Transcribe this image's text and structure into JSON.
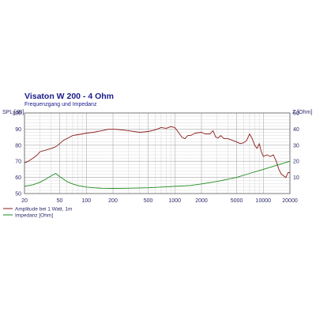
{
  "chart_data": {
    "type": "line",
    "title": "Visaton W 200 - 4 Ohm",
    "subtitle": "Frequenzgang und Impedanz",
    "xscale": "log",
    "xlim": [
      20,
      20000
    ],
    "x_ticks": [
      20,
      50,
      100,
      200,
      500,
      1000,
      2000,
      5000,
      10000,
      20000
    ],
    "x_tick_labels": [
      "20",
      "50",
      "100",
      "200",
      "500",
      "1000",
      "2000",
      "5000",
      "10000",
      "20000"
    ],
    "y_left": {
      "label": "SPL [dB]",
      "lim": [
        50,
        100
      ],
      "ticks": [
        50,
        60,
        70,
        80,
        90,
        100
      ],
      "tick_labels": [
        "50",
        "60",
        "70",
        "80",
        "90",
        "100"
      ]
    },
    "y_right": {
      "label": "Z [Ohm]",
      "lim": [
        0,
        50
      ],
      "ticks": [
        10,
        20,
        30,
        40,
        50
      ],
      "tick_labels": [
        "10",
        "20",
        "30",
        "40",
        "50"
      ]
    },
    "grid": true,
    "legend_position": "bottom-left",
    "series": [
      {
        "name": "Amplitude bei 1 Watt, 1m",
        "axis": "left",
        "color": "#8b1a1a",
        "x": [
          20,
          22,
          25,
          28,
          30,
          35,
          40,
          45,
          50,
          55,
          60,
          70,
          80,
          90,
          100,
          120,
          150,
          180,
          200,
          250,
          300,
          400,
          500,
          600,
          700,
          800,
          900,
          1000,
          1100,
          1200,
          1300,
          1400,
          1500,
          1700,
          2000,
          2200,
          2500,
          2700,
          2900,
          3100,
          3300,
          3600,
          4000,
          4500,
          5000,
          5500,
          6000,
          6500,
          7000,
          7500,
          8000,
          8500,
          9000,
          9500,
          10000,
          11000,
          12000,
          13000,
          14000,
          15000,
          16000,
          17000,
          18000,
          19000,
          20000
        ],
        "y": [
          69,
          70,
          72,
          74,
          76,
          77,
          78,
          79,
          81,
          83,
          84,
          86,
          86.5,
          87,
          87.5,
          88,
          89,
          90,
          90,
          89.5,
          89,
          88,
          88.5,
          89.5,
          91,
          90.5,
          91.5,
          91,
          88,
          85,
          84,
          86,
          86,
          87.5,
          88,
          87,
          87,
          89,
          85,
          84.5,
          86,
          84,
          84,
          83,
          82,
          81,
          81.5,
          83,
          87,
          84,
          80,
          78,
          81,
          76,
          73,
          74,
          73,
          74,
          70,
          65,
          62,
          61,
          60,
          63,
          63
        ]
      },
      {
        "name": "Impedanz [Ohm]",
        "axis": "right",
        "color": "#1d8a1d",
        "x": [
          20,
          25,
          30,
          35,
          40,
          45,
          50,
          55,
          60,
          70,
          80,
          100,
          120,
          150,
          200,
          300,
          500,
          700,
          1000,
          1500,
          2000,
          3000,
          5000,
          7000,
          10000,
          15000,
          20000
        ],
        "y": [
          4.5,
          5.5,
          7,
          9,
          11,
          12.5,
          10.5,
          9,
          7.5,
          6,
          5,
          4,
          3.6,
          3.3,
          3.2,
          3.3,
          3.6,
          4,
          4.5,
          5,
          6,
          7.5,
          10,
          12.5,
          15,
          18,
          20
        ]
      }
    ]
  }
}
